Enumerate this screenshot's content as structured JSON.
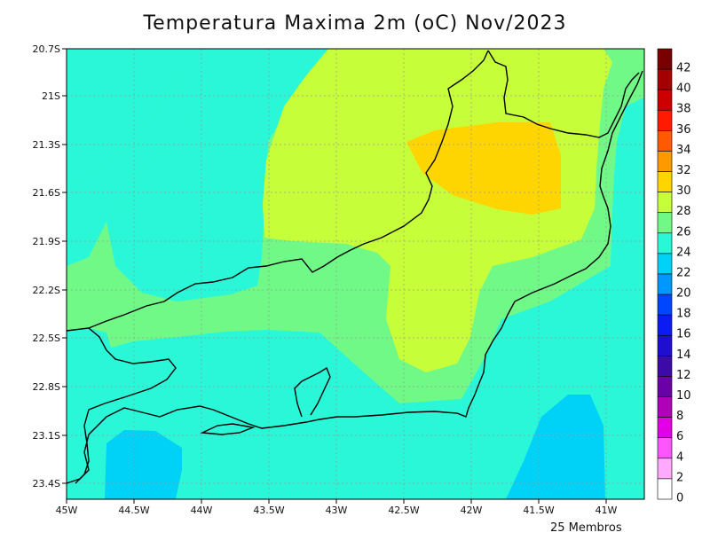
{
  "title": "Temperatura Maxima 2m (oC) Nov/2023",
  "footnote": "25 Membros",
  "lat_labels": [
    "20.7S",
    "21S",
    "21.3S",
    "21.6S",
    "21.9S",
    "22.2S",
    "22.5S",
    "22.8S",
    "23.1S",
    "23.4S"
  ],
  "lon_labels": [
    "45W",
    "44.5W",
    "44W",
    "43.5W",
    "43W",
    "42.5W",
    "42W",
    "41.5W",
    "41W"
  ],
  "colorbar": {
    "labels": [
      "42",
      "40",
      "38",
      "36",
      "34",
      "32",
      "30",
      "28",
      "26",
      "24",
      "22",
      "20",
      "18",
      "16",
      "14",
      "12",
      "10",
      "8",
      "6",
      "4",
      "2",
      "0"
    ],
    "colors": [
      "#7a0000",
      "#a50000",
      "#cc0000",
      "#ff1a00",
      "#ff5a00",
      "#ff9900",
      "#ffd500",
      "#c6ff3a",
      "#70f987",
      "#2af6d8",
      "#00d1f7",
      "#0098ff",
      "#0045ff",
      "#0b1cf2",
      "#1e0fcf",
      "#3c0aa8",
      "#6a00a8",
      "#b000b8",
      "#e100e8",
      "#ff55ff",
      "#ffaaff",
      "#ffffff"
    ]
  },
  "legend_units": "oC",
  "zones": {
    "cool": "#00d1f7",
    "mild": "#2af6d8",
    "warm": "#70f987",
    "hot": "#c6ff3a",
    "hottest": "#ffd500"
  }
}
